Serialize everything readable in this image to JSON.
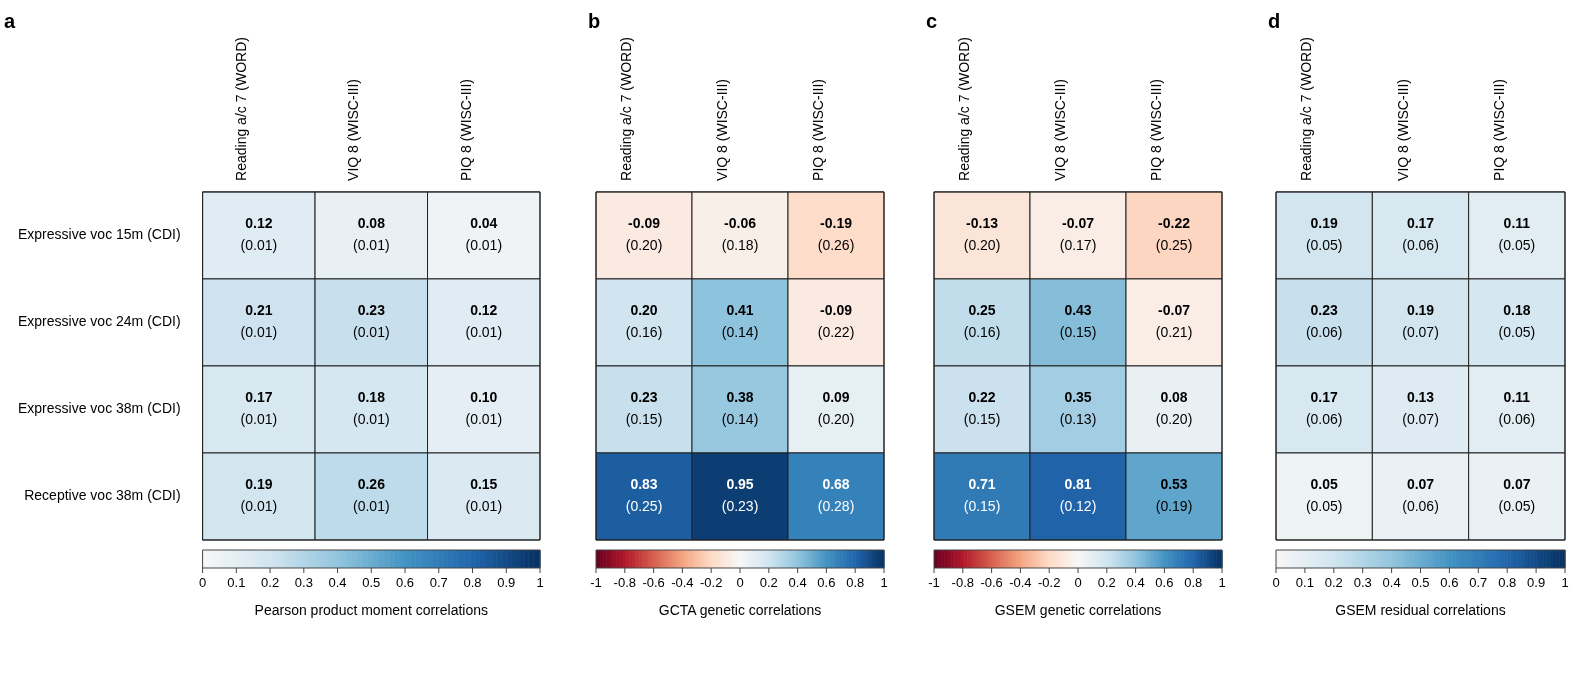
{
  "chart_data": [
    {
      "type": "heatmap",
      "title": "a",
      "categories": [
        "Reading a/c 7 (WORD)",
        "VIQ 8 (WISC-III)",
        "PIQ 8 (WISC-III)"
      ],
      "y_categories": [
        "Expressive voc 15m (CDI)",
        "Expressive voc 24m (CDI)",
        "Expressive voc 38m (CDI)",
        "Receptive voc 38m (CDI)"
      ],
      "cells": [
        [
          0.12,
          0.08,
          0.04
        ],
        [
          0.21,
          0.23,
          0.12
        ],
        [
          0.17,
          0.18,
          0.1
        ],
        [
          0.19,
          0.26,
          0.15
        ]
      ],
      "cell_labels": [
        [
          "0.12\n(0.01)",
          "0.08\n(0.01)",
          "0.04\n(0.01)"
        ],
        [
          "0.21\n(0.01)",
          "0.23\n(0.01)",
          "0.12\n(0.01)"
        ],
        [
          "0.17\n(0.01)",
          "0.18\n(0.01)",
          "0.10\n(0.01)"
        ],
        [
          "0.19\n(0.01)",
          "0.26\n(0.01)",
          "0.15\n(0.01)"
        ]
      ],
      "clim": [
        0,
        1
      ],
      "cticks": [
        0,
        0.1,
        0.2,
        0.3,
        0.4,
        0.5,
        0.6,
        0.7,
        0.8,
        0.9,
        1
      ],
      "clabel": "Pearson product moment correlations"
    },
    {
      "type": "heatmap",
      "title": "b",
      "categories": [
        "Reading a/c 7 (WORD)",
        "VIQ 8 (WISC-III)",
        "PIQ 8 (WISC-III)"
      ],
      "y_categories": [
        null,
        null,
        null,
        null
      ],
      "tick_labels": "x",
      "cells": [
        [
          -0.09,
          -0.06,
          -0.19
        ],
        [
          0.2,
          0.41,
          -0.09
        ],
        [
          0.23,
          0.38,
          0.09
        ],
        [
          0.83,
          0.95,
          0.68
        ]
      ],
      "cell_labels": [
        [
          "-0.09\n(0.20)",
          "-0.06\n(0.18)",
          "-0.19\n(0.26)"
        ],
        [
          "0.20\n(0.16)",
          "0.41\n(0.14)",
          "-0.09\n(0.22)"
        ],
        [
          "0.23\n(0.15)",
          "0.38\n(0.14)",
          "0.09\n(0.20)"
        ],
        [
          "0.83\n(0.25)",
          "0.95\n(0.23)",
          "0.68\n(0.28)"
        ]
      ],
      "clim": [
        -1,
        1
      ],
      "cticks": [
        -1,
        -0.8,
        -0.6,
        -0.4,
        -0.2,
        0,
        0.2,
        0.4,
        0.6,
        0.8,
        1
      ],
      "clabel": "GCTA genetic correlations"
    },
    {
      "type": "heatmap",
      "title": "c",
      "categories": [
        "Reading a/c 7 (WORD)",
        "VIQ 8 (WISC-III)",
        "PIQ 8 (WISC-III)"
      ],
      "y_categories": [
        null,
        null,
        null,
        null
      ],
      "tick_labels": "x",
      "cells": [
        [
          -0.13,
          -0.07,
          -0.22
        ],
        [
          0.25,
          0.43,
          -0.07
        ],
        [
          0.22,
          0.35,
          0.08
        ],
        [
          0.71,
          0.81,
          0.53
        ]
      ],
      "cell_labels": [
        [
          "-0.13\n(0.20)",
          "-0.07\n(0.17)",
          "-0.22\n(0.25)"
        ],
        [
          "0.25\n(0.16)",
          "0.43\n(0.15)",
          "-0.07\n(0.21)"
        ],
        [
          "0.22\n(0.15)",
          "0.35\n(0.13)",
          "0.08\n(0.20)"
        ],
        [
          "0.71\n(0.15)",
          "0.81\n(0.12)",
          "0.53\n(0.19)"
        ]
      ],
      "clim": [
        -1,
        1
      ],
      "cticks": [
        -1,
        -0.8,
        -0.6,
        -0.4,
        -0.2,
        0,
        0.2,
        0.4,
        0.6,
        0.8,
        1
      ],
      "clabel": "GSEM genetic correlations"
    },
    {
      "type": "heatmap",
      "title": "d",
      "categories": [
        "Reading a/c 7 (WORD)",
        "VIQ 8 (WISC-III)",
        "PIQ 8 (WISC-III)"
      ],
      "y_categories": [
        null,
        null,
        null,
        null
      ],
      "tick_labels": "x",
      "cells": [
        [
          0.19,
          0.17,
          0.11
        ],
        [
          0.23,
          0.19,
          0.18
        ],
        [
          0.17,
          0.13,
          0.11
        ],
        [
          0.05,
          0.07,
          0.07
        ]
      ],
      "cell_labels": [
        [
          "0.19\n(0.05)",
          "0.17\n(0.06)",
          "0.11\n(0.05)"
        ],
        [
          "0.23\n(0.06)",
          "0.19\n(0.07)",
          "0.18\n(0.05)"
        ],
        [
          "0.17\n(0.06)",
          "0.13\n(0.07)",
          "0.11\n(0.06)"
        ],
        [
          "0.05\n(0.05)",
          "0.07\n(0.06)",
          "0.07\n(0.05)"
        ]
      ],
      "clim": [
        0,
        1
      ],
      "cticks": [
        0,
        0.1,
        0.2,
        0.3,
        0.4,
        0.5,
        0.6,
        0.7,
        0.8,
        0.9,
        1
      ],
      "clabel": "GSEM residual correlations"
    }
  ]
}
